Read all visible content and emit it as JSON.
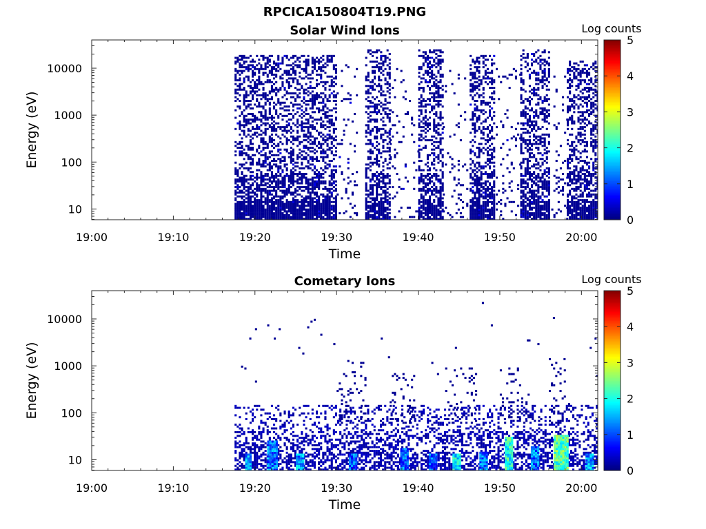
{
  "figure_title": "RPCICA150804T19.PNG",
  "colors": {
    "pixel": "#00008f",
    "axis": "#262626",
    "background": "#ffffff"
  },
  "chart_data": [
    {
      "type": "heatmap",
      "title": "Solar Wind Ions",
      "xlabel": "Time",
      "ylabel": "Energy (eV)",
      "y_scale": "log",
      "y_ticks": [
        "10",
        "100",
        "1000",
        "10000"
      ],
      "x_ticks": [
        "19:00",
        "19:10",
        "19:20",
        "19:30",
        "19:40",
        "19:50",
        "20:00"
      ],
      "xlim": [
        "19:00",
        "20:02"
      ],
      "ylim": [
        5.9,
        40000
      ],
      "colorbar": {
        "label": "Log counts",
        "ticks": [
          "0",
          "1",
          "2",
          "3",
          "4",
          "5"
        ],
        "range": [
          0,
          5
        ],
        "colormap": "jet"
      },
      "activity_intervals": [
        {
          "start": "19:17.5",
          "end": "19:30",
          "emax": 20000,
          "density": 0.42,
          "level": 0.1
        },
        {
          "start": "19:30",
          "end": "19:32.5",
          "emax": 12000,
          "density": 0.05,
          "level": 0.1
        },
        {
          "start": "19:33.5",
          "end": "19:36.5",
          "emax": 25000,
          "density": 0.38,
          "level": 0.1
        },
        {
          "start": "19:36.5",
          "end": "19:40",
          "emax": 10000,
          "density": 0.06,
          "level": 0.1
        },
        {
          "start": "19:40",
          "end": "19:43",
          "emax": 25000,
          "density": 0.38,
          "level": 0.1
        },
        {
          "start": "19:43",
          "end": "19:46",
          "emax": 10000,
          "density": 0.05,
          "level": 0.1
        },
        {
          "start": "19:46.3",
          "end": "19:49.3",
          "emax": 20000,
          "density": 0.4,
          "level": 0.1
        },
        {
          "start": "19:49.5",
          "end": "19:52.5",
          "emax": 10000,
          "density": 0.06,
          "level": 0.1
        },
        {
          "start": "19:52.5",
          "end": "19:56",
          "emax": 25000,
          "density": 0.4,
          "level": 0.1
        },
        {
          "start": "19:56.3",
          "end": "19:58.2",
          "emax": 9000,
          "density": 0.06,
          "level": 0.1
        },
        {
          "start": "19:58.2",
          "end": "20:02.5",
          "emax": 15000,
          "density": 0.42,
          "level": 0.1
        }
      ]
    },
    {
      "type": "heatmap",
      "title": "Cometary Ions",
      "xlabel": "Time",
      "ylabel": "Energy (eV)",
      "y_scale": "log",
      "y_ticks": [
        "10",
        "100",
        "1000",
        "10000"
      ],
      "x_ticks": [
        "19:00",
        "19:10",
        "19:20",
        "19:30",
        "19:40",
        "19:50",
        "20:00"
      ],
      "xlim": [
        "19:00",
        "20:02"
      ],
      "ylim": [
        5.9,
        40000
      ],
      "colorbar": {
        "label": "Log counts",
        "ticks": [
          "0",
          "1",
          "2",
          "3",
          "4",
          "5"
        ],
        "range": [
          0,
          5
        ],
        "colormap": "jet"
      },
      "low_energy_band": {
        "start": "19:17.5",
        "end": "20:02.5",
        "emax": 150,
        "density": 0.35
      },
      "hot_spots": [
        {
          "start": "19:18.8",
          "end": "19:19.5",
          "emin": 6,
          "emax": 14,
          "level": 2.0
        },
        {
          "start": "19:21.5",
          "end": "19:22.8",
          "emin": 6,
          "emax": 25,
          "level": 1.8
        },
        {
          "start": "19:25.0",
          "end": "19:25.8",
          "emin": 6,
          "emax": 13,
          "level": 2.0
        },
        {
          "start": "19:31.5",
          "end": "19:32.3",
          "emin": 6,
          "emax": 13,
          "level": 1.6
        },
        {
          "start": "19:37.8",
          "end": "19:38.8",
          "emin": 6,
          "emax": 18,
          "level": 1.7
        },
        {
          "start": "19:41.3",
          "end": "19:42.1",
          "emin": 6,
          "emax": 14,
          "level": 1.6
        },
        {
          "start": "19:44.2",
          "end": "19:45.0",
          "emin": 6,
          "emax": 13,
          "level": 2.4
        },
        {
          "start": "19:47.5",
          "end": "19:48.3",
          "emin": 6,
          "emax": 15,
          "level": 1.8
        },
        {
          "start": "19:50.6",
          "end": "19:51.6",
          "emin": 6,
          "emax": 32,
          "level": 2.6
        },
        {
          "start": "19:53.8",
          "end": "19:54.6",
          "emin": 6,
          "emax": 20,
          "level": 1.8
        },
        {
          "start": "19:56.6",
          "end": "19:58.2",
          "emin": 6,
          "emax": 35,
          "level": 2.9
        },
        {
          "start": "20:00.5",
          "end": "20:01.5",
          "emin": 6,
          "emax": 14,
          "level": 2.0
        }
      ],
      "mid_energy_clusters": [
        {
          "start": "19:30",
          "end": "19:33.5",
          "emin": 60,
          "emax": 1300,
          "density": 0.22
        },
        {
          "start": "19:36.5",
          "end": "19:39.5",
          "emin": 60,
          "emax": 800,
          "density": 0.18
        },
        {
          "start": "19:43.3",
          "end": "19:47",
          "emin": 60,
          "emax": 1000,
          "density": 0.17
        },
        {
          "start": "19:50",
          "end": "19:53.5",
          "emin": 60,
          "emax": 900,
          "density": 0.17
        },
        {
          "start": "19:56",
          "end": "19:58.5",
          "emin": 60,
          "emax": 1500,
          "density": 0.2
        }
      ],
      "sparse_points": [
        {
          "time": "19:18.3",
          "energy": 950
        },
        {
          "time": "19:18.7",
          "energy": 850
        },
        {
          "time": "19:20.0",
          "energy": 6200
        },
        {
          "time": "19:19.3",
          "energy": 3900
        },
        {
          "time": "19:21.5",
          "energy": 7200
        },
        {
          "time": "19:22.3",
          "energy": 3800
        },
        {
          "time": "19:22.9",
          "energy": 6300
        },
        {
          "time": "19:20.0",
          "energy": 450
        },
        {
          "time": "19:25.3",
          "energy": 2500
        },
        {
          "time": "19:25.8",
          "energy": 1800
        },
        {
          "time": "19:26.8",
          "energy": 8500
        },
        {
          "time": "19:27.2",
          "energy": 9300
        },
        {
          "time": "19:26.4",
          "energy": 6600
        },
        {
          "time": "19:28.0",
          "energy": 4800
        },
        {
          "time": "19:29.6",
          "energy": 2800
        },
        {
          "time": "19:35.4",
          "energy": 3700
        },
        {
          "time": "19:36.3",
          "energy": 1600
        },
        {
          "time": "19:41.6",
          "energy": 1200
        },
        {
          "time": "19:42.3",
          "energy": 700
        },
        {
          "time": "19:44.5",
          "energy": 2500
        },
        {
          "time": "19:47.8",
          "energy": 22000
        },
        {
          "time": "19:48.9",
          "energy": 7200
        },
        {
          "time": "19:53.5",
          "energy": 3600
        },
        {
          "time": "19:53.3",
          "energy": 3400
        },
        {
          "time": "19:54.6",
          "energy": 2800
        },
        {
          "time": "19:56.5",
          "energy": 10500
        },
        {
          "time": "19:57.8",
          "energy": 1400
        },
        {
          "time": "20:01.0",
          "energy": 2500
        },
        {
          "time": "20:01.6",
          "energy": 4000
        },
        {
          "time": "20:01.8",
          "energy": 600
        }
      ]
    }
  ]
}
